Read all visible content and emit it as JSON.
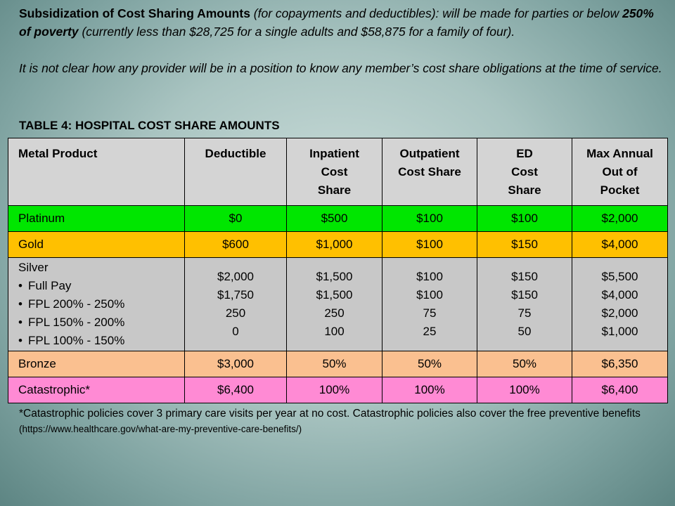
{
  "intro": {
    "heading": "Subsidization of Cost Sharing Amounts",
    "heading_paren": " (for copayments and deductibles): will be made for parties or below ",
    "poverty": "250% of poverty",
    "poverty_rest": " (currently less than $28,725 for a single adults and $58,875 for a family of four).",
    "note": "It is not clear how any provider will be in a position to know any member’s cost share obligations at the time of service."
  },
  "table_title": "TABLE 4: HOSPITAL COST SHARE AMOUNTS",
  "table": {
    "headers": [
      "Metal Product",
      "Deductible",
      "Inpatient Cost Share",
      "Outpatient Cost Share",
      "ED Cost Share",
      "Max Annual Out of Pocket"
    ],
    "header_lines": [
      [
        "Metal Product"
      ],
      [
        "Deductible"
      ],
      [
        "Inpatient",
        "Cost",
        "Share"
      ],
      [
        "Outpatient",
        "Cost Share"
      ],
      [
        "ED",
        "Cost",
        "Share"
      ],
      [
        "Max Annual",
        "Out of",
        "Pocket"
      ]
    ],
    "platinum": [
      "Platinum",
      "$0",
      "$500",
      "$100",
      "$100",
      "$2,000"
    ],
    "gold": [
      "Gold",
      "$600",
      "$1,000",
      "$100",
      "$150",
      "$4,000"
    ],
    "silver": {
      "name": "Silver",
      "bullet": "•",
      "tiers": [
        "Full Pay",
        "FPL 200% - 250%",
        "FPL 150% - 200%",
        "FPL 100% - 150%"
      ],
      "deductible": [
        "$2,000",
        "$1,750",
        "250",
        "0"
      ],
      "inpatient": [
        "$1,500",
        "$1,500",
        "250",
        "100"
      ],
      "outpatient": [
        "$100",
        "$100",
        "75",
        "25"
      ],
      "ed": [
        "$150",
        "$150",
        "75",
        "50"
      ],
      "max_oop": [
        "$5,500",
        "$4,000",
        "$2,000",
        "$1,000"
      ]
    },
    "bronze": [
      "Bronze",
      "$3,000",
      "50%",
      "50%",
      "50%",
      "$6,350"
    ],
    "catastrophic": [
      "Catastrophic*",
      "$6,400",
      "100%",
      "100%",
      "100%",
      "$6,400"
    ]
  },
  "footnote": {
    "text": "*Catastrophic policies cover 3 primary care visits per year at no cost. Catastrophic policies also cover the free preventive benefits ",
    "url": "(https://www.healthcare.gov/what-are-my-preventive-care-benefits/)"
  },
  "colors": {
    "platinum": "#00e600",
    "gold": "#ffc000",
    "silver": "#c8c8c8",
    "bronze": "#fac090",
    "catastrophic": "#ff8ad4",
    "header": "#d4d4d4"
  }
}
